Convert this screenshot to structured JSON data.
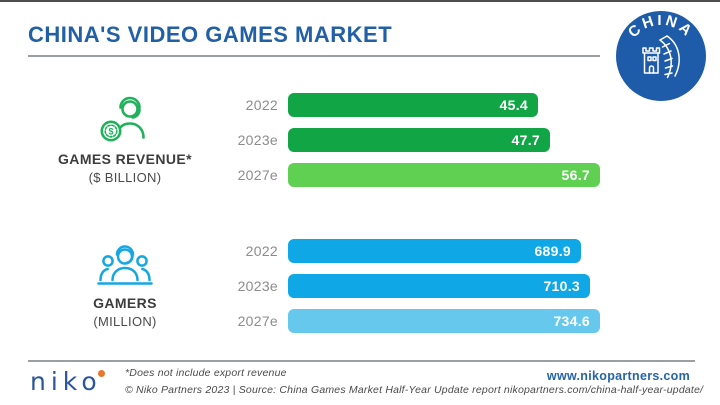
{
  "header": {
    "title": "CHINA'S VIDEO GAMES MARKET",
    "logo_text": "CHINA"
  },
  "chart_data": [
    {
      "type": "bar",
      "title": "GAMES REVENUE*",
      "subtitle": "($ BILLION)",
      "icon": "gamer-with-dollar-coin-icon",
      "categories": [
        "2022",
        "2023e",
        "2027e"
      ],
      "values": [
        45.4,
        47.7,
        56.7
      ],
      "bar_colors": [
        "#12A546",
        "#12A546",
        "#5FD052"
      ],
      "xlim": [
        0,
        56.7
      ],
      "grid": "off",
      "value_labels": "inside-right"
    },
    {
      "type": "bar",
      "title": "GAMERS",
      "subtitle": "(MILLION)",
      "icon": "gamers-group-icon",
      "categories": [
        "2022",
        "2023e",
        "2027e"
      ],
      "values": [
        689.9,
        710.3,
        734.6
      ],
      "bar_colors": [
        "#10A7E6",
        "#10A7E6",
        "#66C8EC"
      ],
      "xlim": [
        0,
        734.6
      ],
      "grid": "off",
      "value_labels": "inside-right"
    }
  ],
  "footer": {
    "brand": "niko",
    "footnote": "*Does not include export revenue",
    "source": "© Niko Partners 2023  |  Source: China Games Market Half-Year Update report nikopartners.com/china-half-year-update/",
    "website": "www.nikopartners.com"
  },
  "colors": {
    "title_blue": "#2160A6",
    "logo_circle_blue": "#1E5BA8",
    "green_dark": "#12A546",
    "green_light": "#5FD052",
    "blue_dark": "#10A7E6",
    "blue_light": "#66C8EC",
    "year_label_gray": "#8c8c8c",
    "rule_gray": "#9b9fa3",
    "niko_blue": "#2B569B",
    "niko_dot_orange": "#E8762C",
    "link_blue": "#2665A8"
  }
}
